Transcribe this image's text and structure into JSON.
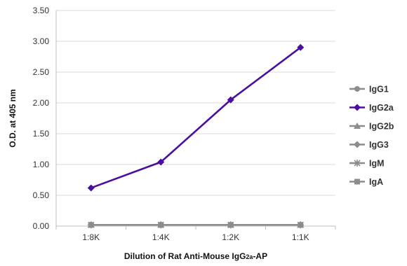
{
  "chart_data": {
    "type": "line",
    "categories": [
      "1:8K",
      "1:4K",
      "1:2K",
      "1:1K"
    ],
    "ylabel": "O.D. at 405 nm",
    "xlabel_parts": [
      {
        "text": "Dilution of Rat Anti-Mouse IgG",
        "sub": false
      },
      {
        "text": "2a",
        "sub": true
      },
      {
        "text": "-AP",
        "sub": false
      }
    ],
    "ylim": [
      0,
      3.5
    ],
    "yticks": [
      "0.00",
      "0.50",
      "1.00",
      "1.50",
      "2.00",
      "2.50",
      "3.00",
      "3.50"
    ],
    "grid": "horizontal",
    "legend_position": "right",
    "series": [
      {
        "name": "IgG1",
        "values": [
          0.02,
          0.02,
          0.02,
          0.02
        ],
        "color": "#8c8c8c",
        "marker": "circle"
      },
      {
        "name": "IgG2a",
        "values": [
          0.62,
          1.04,
          2.05,
          2.9
        ],
        "color": "#4b0fa0",
        "marker": "diamond"
      },
      {
        "name": "IgG2b",
        "values": [
          0.02,
          0.02,
          0.02,
          0.02
        ],
        "color": "#8c8c8c",
        "marker": "triangle"
      },
      {
        "name": "IgG3",
        "values": [
          0.02,
          0.02,
          0.02,
          0.02
        ],
        "color": "#8c8c8c",
        "marker": "diamond"
      },
      {
        "name": "IgM",
        "values": [
          0.02,
          0.02,
          0.02,
          0.02
        ],
        "color": "#8c8c8c",
        "marker": "star"
      },
      {
        "name": "IgA",
        "values": [
          0.02,
          0.02,
          0.02,
          0.02
        ],
        "color": "#8c8c8c",
        "marker": "square"
      }
    ]
  }
}
